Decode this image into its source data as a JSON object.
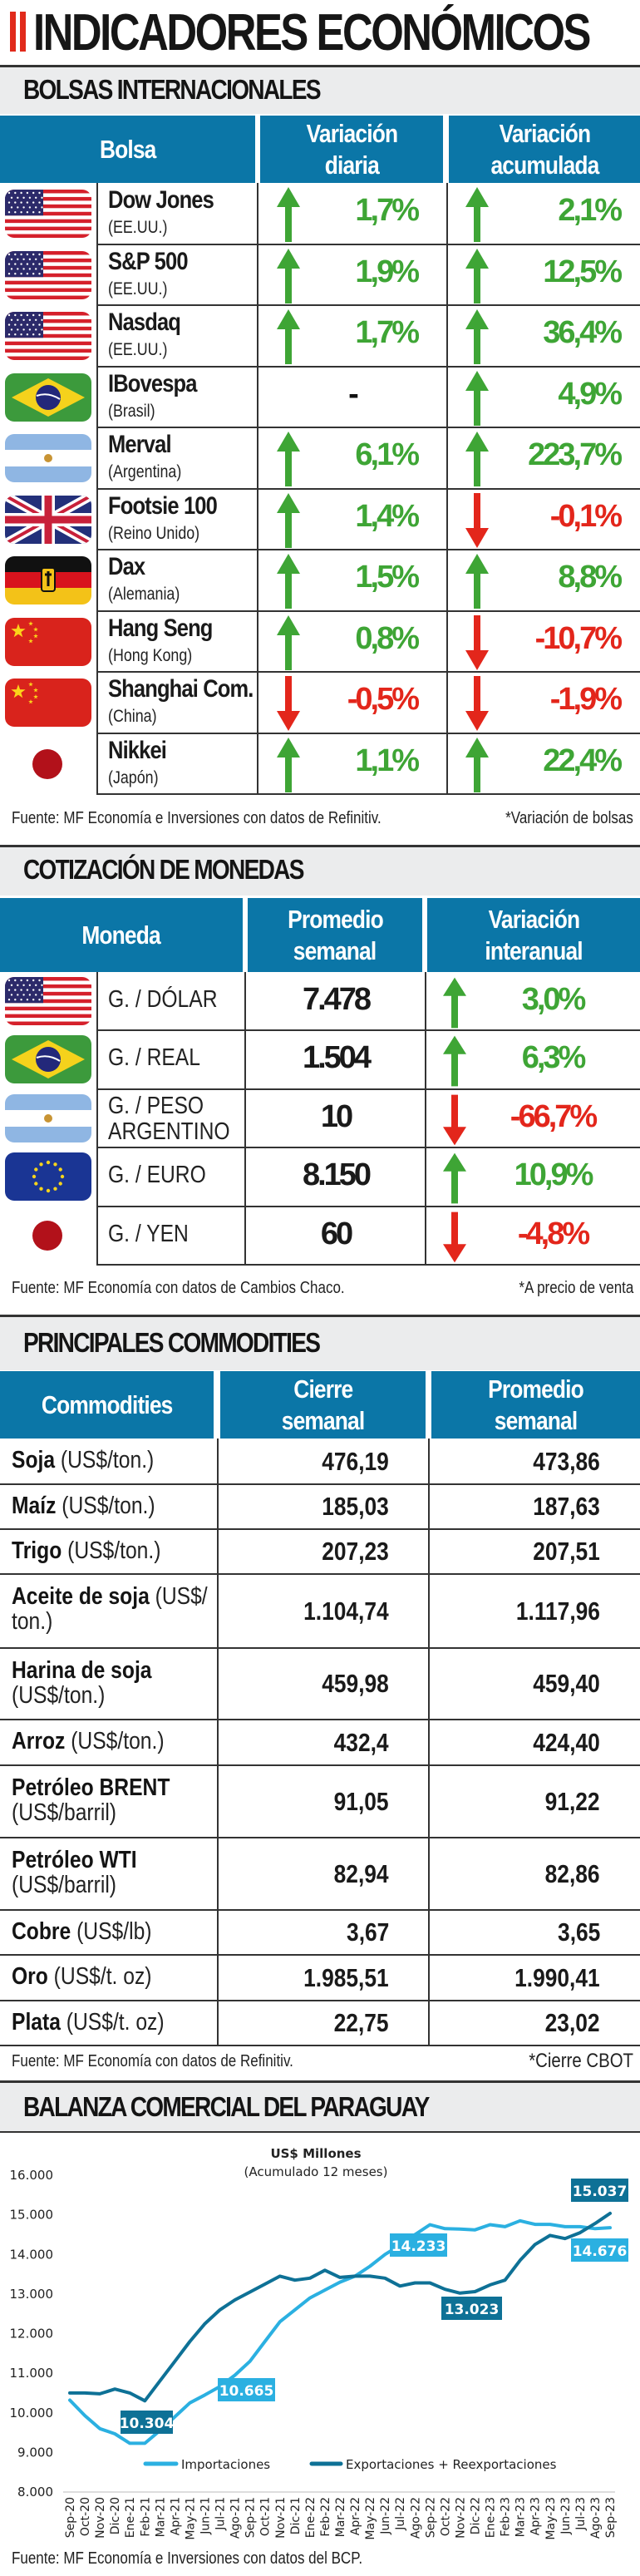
{
  "title": "INDICADORES ECONÓMICOS",
  "colors": {
    "header_blue": "#0b76a7",
    "up_green": "#3ea535",
    "down_red": "#e3261b",
    "imports": "#2bb0e1",
    "exports": "#0e7196",
    "accent_red": "#e12a1b"
  },
  "bolsas": {
    "heading": "BOLSAS INTERNACIONALES",
    "columns": [
      "Bolsa",
      "Variación diaria",
      "Variación acumulada"
    ],
    "col_lines": [
      [
        "Bolsa"
      ],
      [
        "Variación",
        "diaria"
      ],
      [
        "Variación",
        "acumulada"
      ]
    ],
    "rows": [
      {
        "flag": "us",
        "name": "Dow Jones",
        "country": "(EE.UU.)",
        "daily": "1,7%",
        "daily_dir": "up",
        "acc": "2,1%",
        "acc_dir": "up"
      },
      {
        "flag": "us",
        "name": "S&P 500",
        "country": "(EE.UU.)",
        "daily": "1,9%",
        "daily_dir": "up",
        "acc": "12,5%",
        "acc_dir": "up"
      },
      {
        "flag": "us",
        "name": "Nasdaq",
        "country": "(EE.UU.)",
        "daily": "1,7%",
        "daily_dir": "up",
        "acc": "36,4%",
        "acc_dir": "up"
      },
      {
        "flag": "br",
        "name": "IBovespa",
        "country": "(Brasil)",
        "daily": "-",
        "daily_dir": "none",
        "acc": "4,9%",
        "acc_dir": "up"
      },
      {
        "flag": "ar",
        "name": "Merval",
        "country": "(Argentina)",
        "daily": "6,1%",
        "daily_dir": "up",
        "acc": "223,7%",
        "acc_dir": "up"
      },
      {
        "flag": "uk",
        "name": "Footsie 100",
        "country": "(Reino Unido)",
        "daily": "1,4%",
        "daily_dir": "up",
        "acc": "-0,1%",
        "acc_dir": "down"
      },
      {
        "flag": "de",
        "name": "Dax",
        "country": "(Alemania)",
        "daily": "1,5%",
        "daily_dir": "up",
        "acc": "8,8%",
        "acc_dir": "up"
      },
      {
        "flag": "cn",
        "name": "Hang Seng",
        "country": "(Hong Kong)",
        "daily": "0,8%",
        "daily_dir": "up",
        "acc": "-10,7%",
        "acc_dir": "down"
      },
      {
        "flag": "cn",
        "name": "Shanghai Com.",
        "country": "(China)",
        "daily": "-0,5%",
        "daily_dir": "down",
        "acc": "-1,9%",
        "acc_dir": "down"
      },
      {
        "flag": "jp",
        "name": "Nikkei",
        "country": "(Japón)",
        "daily": "1,1%",
        "daily_dir": "up",
        "acc": "22,4%",
        "acc_dir": "up"
      }
    ],
    "source": "Fuente: MF Economía e Inversiones con datos de Refinitiv.",
    "footnote": "*Variación de bolsas"
  },
  "monedas": {
    "heading": "COTIZACIÓN DE MONEDAS",
    "col_lines": [
      [
        "Moneda"
      ],
      [
        "Promedio",
        "semanal"
      ],
      [
        "Variación",
        "interanual"
      ]
    ],
    "rows": [
      {
        "flag": "us",
        "name": "G. / DÓLAR",
        "avg": "7.478",
        "var": "3,0%",
        "dir": "up"
      },
      {
        "flag": "br",
        "name": "G. / REAL",
        "avg": "1.504",
        "var": "6,3%",
        "dir": "up"
      },
      {
        "flag": "ar",
        "name": "G. / PESO ARGENTINO",
        "avg": "10",
        "var": "-66,7%",
        "dir": "down"
      },
      {
        "flag": "eu",
        "name": "G. / EURO",
        "avg": "8.150",
        "var": "10,9%",
        "dir": "up"
      },
      {
        "flag": "jp",
        "name": "G. / YEN",
        "avg": "60",
        "var": "-4,8%",
        "dir": "down"
      }
    ],
    "source": "Fuente: MF Economía con datos de Cambios Chaco.",
    "footnote": "*A precio de venta"
  },
  "commodities": {
    "heading": "PRINCIPALES COMMODITIES",
    "col_lines": [
      [
        "Commodities"
      ],
      [
        "Cierre",
        "semanal"
      ],
      [
        "Promedio",
        "semanal"
      ]
    ],
    "rows": [
      {
        "name": "Soja",
        "unit": "(US$/ton.)",
        "close": "476,19",
        "avg": "473,86"
      },
      {
        "name": "Maíz",
        "unit": "(US$/ton.)",
        "close": "185,03",
        "avg": "187,63"
      },
      {
        "name": "Trigo",
        "unit": "(US$/ton.)",
        "close": "207,23",
        "avg": "207,51"
      },
      {
        "name": "Aceite de soja",
        "unit": "(US$/ ton.)",
        "close": "1.104,74",
        "avg": "1.117,96"
      },
      {
        "name": "Harina de soja",
        "unit": "(US$/ton.)",
        "close": "459,98",
        "avg": "459,40"
      },
      {
        "name": "Arroz",
        "unit": "(US$/ton.)",
        "close": "432,4",
        "avg": "424,40"
      },
      {
        "name": "Petróleo BRENT",
        "unit": "(US$/barril)",
        "close": "91,05",
        "avg": "91,22"
      },
      {
        "name": "Petróleo WTI",
        "unit": "(US$/barril)",
        "close": "82,94",
        "avg": "82,86"
      },
      {
        "name": "Cobre",
        "unit": "(US$/lb)",
        "close": "3,67",
        "avg": "3,65"
      },
      {
        "name": "Oro",
        "unit": "(US$/t. oz)",
        "close": "1.985,51",
        "avg": "1.990,41"
      },
      {
        "name": "Plata",
        "unit": "(US$/t. oz)",
        "close": "22,75",
        "avg": "23,02"
      }
    ],
    "source": "Fuente: MF Economía con datos de Refinitiv.",
    "footnote": "*Cierre CBOT"
  },
  "balanza": {
    "heading": "BALANZA COMERCIAL DEL PARAGUAY",
    "source": "Fuente: MF Economía e Inversiones con datos del BCP."
  },
  "chart_data": {
    "type": "line",
    "title": "US$ Millones",
    "subtitle": "(Acumulado 12 meses)",
    "ylim": [
      8000,
      16000
    ],
    "yticks": [
      "8.000",
      "9.000",
      "10.000",
      "11.000",
      "12.000",
      "13.000",
      "14.000",
      "15.000",
      "16.000"
    ],
    "grid": false,
    "legend": "bottom",
    "x": [
      "Sep-20",
      "Oct-20",
      "Nov-20",
      "Dic-20",
      "Ene-21",
      "Feb-21",
      "Mar-21",
      "Apr-21",
      "May-21",
      "Jun-21",
      "Jul-21",
      "Ago-21",
      "Sep-21",
      "Oct-21",
      "Nov-21",
      "Dic-21",
      "Ene-22",
      "Feb-22",
      "Mar-22",
      "Apr-22",
      "May-22",
      "Jun-22",
      "Jul-22",
      "Ago-22",
      "Sep-22",
      "Oct-22",
      "Nov-22",
      "Dic-22",
      "Ene-23",
      "Feb-23",
      "Mar-23",
      "Apr-23",
      "May-23",
      "Jun-23",
      "Jul-23",
      "Ago-23",
      "Sep-23"
    ],
    "series": [
      {
        "name": "Importaciones",
        "color": "#2bb0e1",
        "values": [
          10320,
          9930,
          9600,
          9470,
          9230,
          9230,
          9550,
          9900,
          10250,
          10450,
          10665,
          10950,
          11300,
          11800,
          12300,
          12600,
          12900,
          13100,
          13300,
          13450,
          13700,
          14000,
          14233,
          14500,
          14750,
          14650,
          14640,
          14620,
          14750,
          14700,
          14850,
          14760,
          14760,
          14700,
          14700,
          14650,
          14676
        ]
      },
      {
        "name": "Exportaciones + Reexportaciones",
        "color": "#0e7196",
        "values": [
          10500,
          10500,
          10480,
          10600,
          10500,
          10304,
          10800,
          11300,
          11800,
          12250,
          12600,
          12850,
          13050,
          13250,
          13450,
          13350,
          13400,
          13600,
          13420,
          13450,
          13450,
          13400,
          13200,
          13280,
          13280,
          13120,
          13023,
          13060,
          13230,
          13350,
          13850,
          14250,
          14480,
          14400,
          14550,
          14780,
          15037
        ]
      }
    ],
    "annotations": [
      {
        "series": 1,
        "x": "Feb-21",
        "label": "10.304"
      },
      {
        "series": 0,
        "x": "Jul-21",
        "label": "10.665"
      },
      {
        "series": 0,
        "x": "Jul-22",
        "label": "14.233"
      },
      {
        "series": 1,
        "x": "Nov-22",
        "label": "13.023"
      },
      {
        "series": 1,
        "x": "Sep-23",
        "label": "15.037"
      },
      {
        "series": 0,
        "x": "Sep-23",
        "label": "14.676"
      }
    ]
  }
}
